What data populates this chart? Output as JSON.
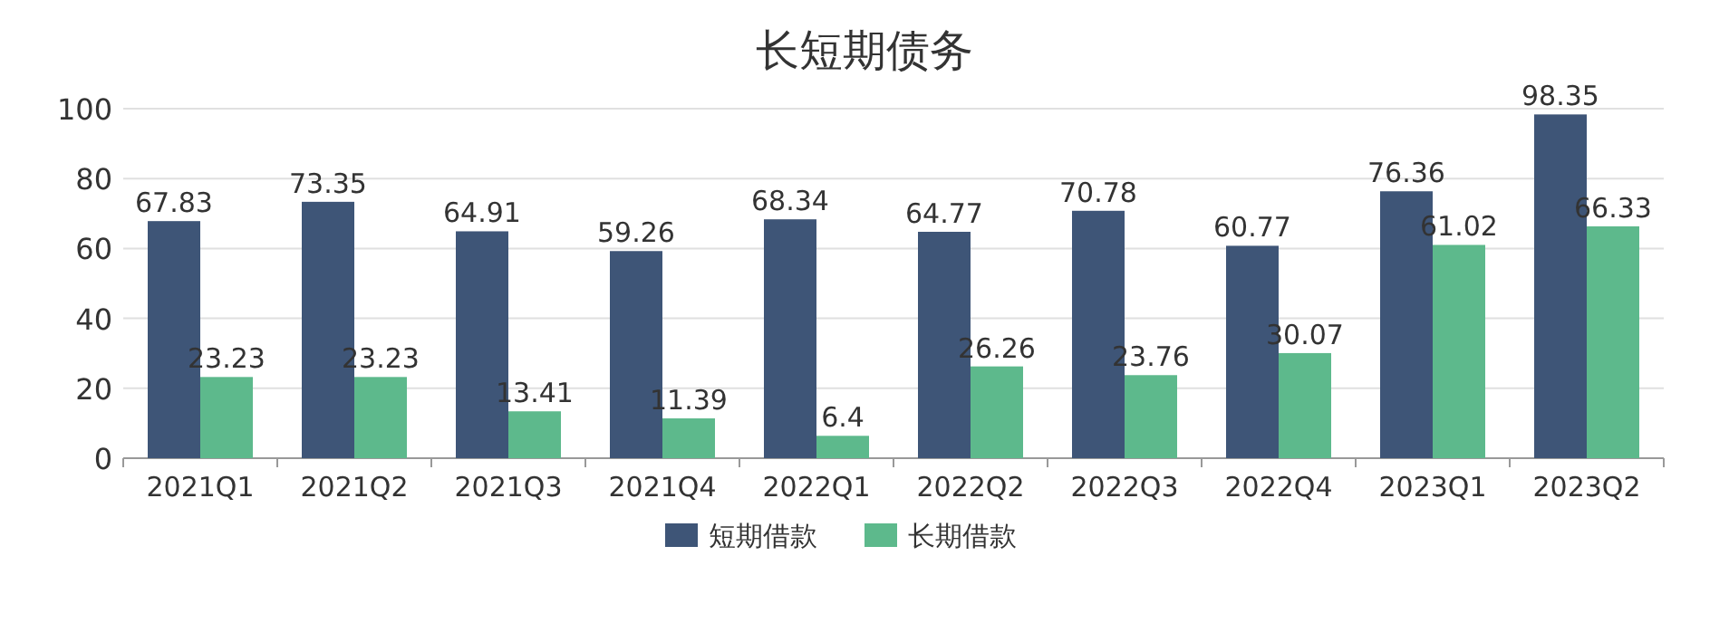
{
  "chart_data": {
    "type": "bar",
    "title": "长短期债务",
    "categories": [
      "2021Q1",
      "2021Q2",
      "2021Q3",
      "2021Q4",
      "2022Q1",
      "2022Q2",
      "2022Q3",
      "2022Q4",
      "2023Q1",
      "2023Q2"
    ],
    "series": [
      {
        "name": "短期借款",
        "color": "#3e5577",
        "values": [
          67.83,
          73.35,
          64.91,
          59.26,
          68.34,
          64.77,
          70.78,
          60.77,
          76.36,
          98.35
        ]
      },
      {
        "name": "长期借款",
        "color": "#5db98c",
        "values": [
          23.23,
          23.23,
          13.41,
          11.39,
          6.4,
          26.26,
          23.76,
          30.07,
          61.02,
          66.33
        ]
      }
    ],
    "ylim": [
      0,
      100
    ],
    "yticks": [
      0,
      20,
      40,
      60,
      80,
      100
    ],
    "grid": "y",
    "legend": "bottom",
    "data_labels": true
  }
}
